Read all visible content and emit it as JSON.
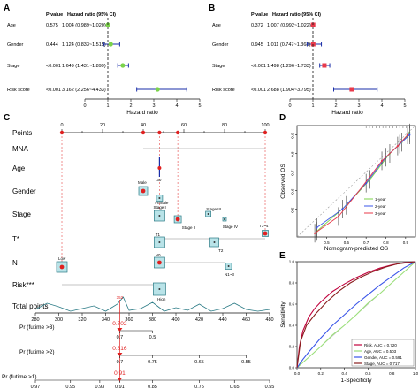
{
  "panel_labels": {
    "a": "A",
    "b": "B",
    "c": "C",
    "d": "D",
    "e": "E"
  },
  "forest_a": {
    "header_p": "P value",
    "header_hr": "Hazard ratio (95% CI)",
    "rows": [
      {
        "name": "Age",
        "p": "0.575",
        "hr": "1.004 (0.989~1.020)",
        "est": 1.004,
        "lo": 0.989,
        "hi": 1.02
      },
      {
        "name": "Gender",
        "p": "0.444",
        "hr": "1.124 (0.833~1.515)",
        "est": 1.124,
        "lo": 0.833,
        "hi": 1.515
      },
      {
        "name": "Stage",
        "p": "<0.001",
        "hr": "1.649 (1.431~1.899)",
        "est": 1.649,
        "lo": 1.431,
        "hi": 1.899
      },
      {
        "name": "Risk score",
        "p": "<0.001",
        "hr": "3.162 (2.256~4.433)",
        "est": 3.162,
        "lo": 2.256,
        "hi": 4.433
      }
    ],
    "xlabel": "Hazard ratio",
    "ticks": [
      "0",
      "1",
      "2",
      "3",
      "4",
      "5"
    ],
    "xlim": [
      0,
      5
    ],
    "marker_color": "#7bd34a"
  },
  "forest_b": {
    "header_p": "P value",
    "header_hr": "Hazard ratio (95% CI)",
    "rows": [
      {
        "name": "Age",
        "p": "0.372",
        "hr": "1.007 (0.992~1.022)",
        "est": 1.007,
        "lo": 0.992,
        "hi": 1.022
      },
      {
        "name": "Gender",
        "p": "0.945",
        "hr": "1.011 (0.747~1.368)",
        "est": 1.011,
        "lo": 0.747,
        "hi": 1.368
      },
      {
        "name": "Stage",
        "p": "<0.001",
        "hr": "1.498 (1.296~1.733)",
        "est": 1.498,
        "lo": 1.296,
        "hi": 1.733
      },
      {
        "name": "Risk score",
        "p": "<0.001",
        "hr": "2.688 (1.904~3.795)",
        "est": 2.688,
        "lo": 1.904,
        "hi": 3.795
      }
    ],
    "xlabel": "Hazard ratio",
    "ticks": [
      "0",
      "1",
      "2",
      "3",
      "4",
      "5"
    ],
    "xlim": [
      0,
      5
    ],
    "marker_color": "#e8394a"
  },
  "nomogram": {
    "rows": [
      "Points",
      "MNA",
      "Age",
      "Gender",
      "Stage",
      "T*",
      "N",
      "Risk***",
      "Total points"
    ],
    "points_ticks": [
      "0",
      "20",
      "40",
      "60",
      "80",
      "100"
    ],
    "age_value": "30",
    "gender_levels": [
      "Male",
      "Female"
    ],
    "stage_levels": [
      "Stage I",
      "Stage II",
      "Stage III",
      "Stage IV"
    ],
    "t_levels": [
      "T1",
      "T2",
      "T3~4"
    ],
    "n_levels": [
      "N0",
      "N1~3"
    ],
    "risk_levels": [
      "Low",
      "High"
    ],
    "total_ticks": [
      "280",
      "300",
      "320",
      "340",
      "360",
      "380",
      "400",
      "420",
      "440",
      "460",
      "480"
    ],
    "total_marker": "352",
    "pr3_label": "Pr (futime >3)",
    "pr3_value": "0.702",
    "pr3_ticks": [
      "0.7",
      "0.5"
    ],
    "pr2_label": "Pr (futime >2)",
    "pr2_value": "0.816",
    "pr2_ticks": [
      "0.7",
      "0.75",
      "0.65",
      "0.55"
    ],
    "pr1_label": "Pr (futime >1)",
    "pr1_value": "0.91",
    "pr1_ticks": [
      "0.97",
      "0.95",
      "0.93",
      "0.91",
      "0.85",
      "0.75",
      "0.65",
      "0.55"
    ]
  },
  "calibration": {
    "xlabel": "Nomogram-predicted OS",
    "ylabel": "Observed OS",
    "xticks": [
      "0.5",
      "0.6",
      "0.7",
      "0.8",
      "0.9"
    ],
    "yticks": [
      "0.5",
      "0.6",
      "0.7",
      "0.8",
      "0.9"
    ],
    "legend": [
      "1-year",
      "2-year",
      "3-year"
    ],
    "colors": [
      "#7bd34a",
      "#3a55e8",
      "#e8394a"
    ]
  },
  "chart_data": {
    "type": "line",
    "title": "",
    "xlabel": "1-Specificity",
    "ylabel": "Sensitivity",
    "xticks": [
      "0.0",
      "0.2",
      "0.4",
      "0.6",
      "0.8",
      "1.0"
    ],
    "yticks": [
      "0.0",
      "0.2",
      "0.4",
      "0.6",
      "0.8",
      "1.0"
    ],
    "xlim": [
      0,
      1
    ],
    "ylim": [
      0,
      1
    ],
    "legend_position": "bottom-right",
    "series": [
      {
        "name": "Risk, AUC = 0.720",
        "color": "#c0003c",
        "x": [
          0,
          0.02,
          0.05,
          0.1,
          0.15,
          0.2,
          0.3,
          0.4,
          0.5,
          0.6,
          0.7,
          0.8,
          0.9,
          1.0
        ],
        "y": [
          0,
          0.2,
          0.35,
          0.48,
          0.56,
          0.62,
          0.72,
          0.79,
          0.85,
          0.9,
          0.94,
          0.97,
          0.99,
          1.0
        ]
      },
      {
        "name": "Age, AUC = 0.503",
        "color": "#9be07a",
        "x": [
          0,
          0.1,
          0.2,
          0.3,
          0.4,
          0.5,
          0.6,
          0.7,
          0.8,
          0.9,
          1.0
        ],
        "y": [
          0,
          0.1,
          0.2,
          0.31,
          0.4,
          0.5,
          0.61,
          0.7,
          0.8,
          0.9,
          1.0
        ]
      },
      {
        "name": "Gender, AUC = 0.591",
        "color": "#3a55e8",
        "x": [
          0,
          0.05,
          0.1,
          0.2,
          0.3,
          0.4,
          0.5,
          0.6,
          0.7,
          0.8,
          0.9,
          1.0
        ],
        "y": [
          0,
          0.08,
          0.15,
          0.28,
          0.4,
          0.5,
          0.6,
          0.69,
          0.78,
          0.86,
          0.94,
          1.0
        ]
      },
      {
        "name": "Stage, AUC = 0.717",
        "color": "#8a1e1e",
        "x": [
          0,
          0.03,
          0.08,
          0.15,
          0.25,
          0.35,
          0.45,
          0.55,
          0.65,
          0.75,
          0.85,
          1.0
        ],
        "y": [
          0,
          0.25,
          0.4,
          0.5,
          0.62,
          0.72,
          0.8,
          0.86,
          0.91,
          0.95,
          0.98,
          1.0
        ]
      }
    ]
  }
}
